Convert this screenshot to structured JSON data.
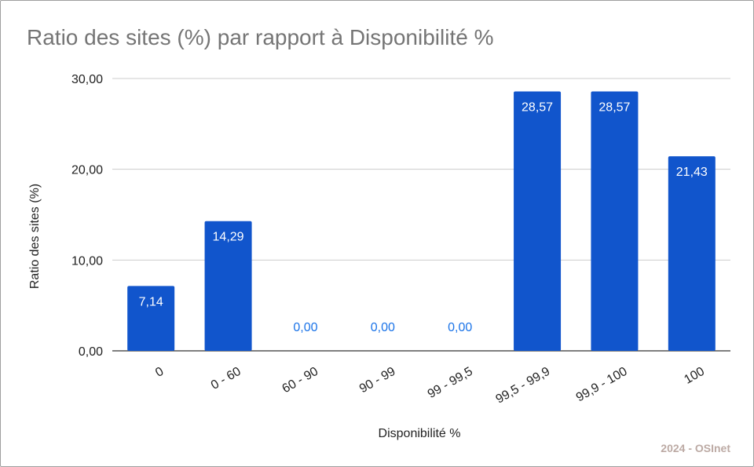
{
  "chart_data": {
    "type": "bar",
    "title": "Ratio des sites (%) par rapport à Disponibilité %",
    "xlabel": "Disponibilité %",
    "ylabel": "Ratio des sites (%)",
    "categories": [
      "0",
      "0 - 60",
      "60 - 90",
      "90 - 99",
      "99 - 99,5",
      "99,5 - 99,9",
      "99,9 - 100",
      "100"
    ],
    "values": [
      7.14,
      14.29,
      0,
      0,
      0,
      28.57,
      28.57,
      21.43
    ],
    "data_labels": [
      "7,14",
      "14,29",
      "0,00",
      "0,00",
      "0,00",
      "28,57",
      "28,57",
      "21,43"
    ],
    "ylim": [
      0,
      30
    ],
    "yticks": [
      0,
      10,
      20,
      30
    ],
    "ytick_labels": [
      "0,00",
      "10,00",
      "20,00",
      "30,00"
    ],
    "grid": true,
    "legend": "none",
    "colors": {
      "bar": "#1155cc",
      "label_inside": "#ffffff",
      "label_outside": "#1a73e8",
      "gridline": "#cccccc",
      "baseline": "#333333",
      "title": "#757575"
    }
  },
  "footer": {
    "credit": "2024 - OSInet"
  }
}
